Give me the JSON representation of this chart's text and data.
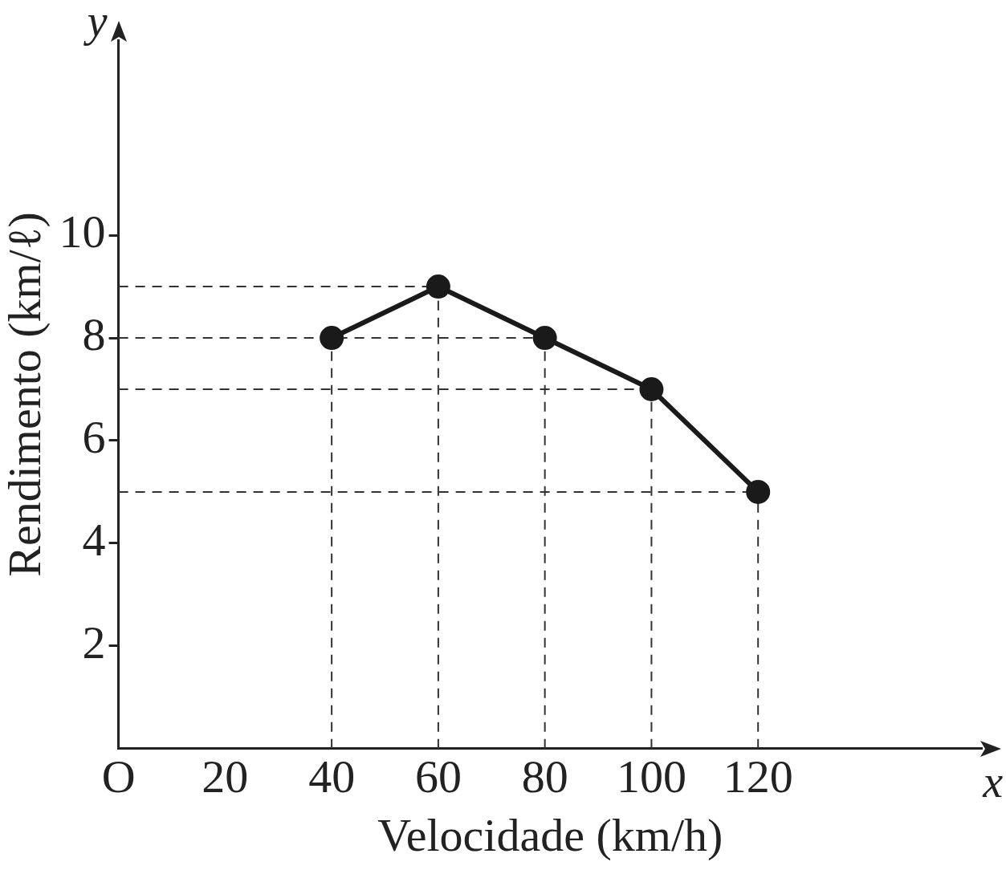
{
  "chart_data": {
    "type": "line",
    "xlabel": "Velocidade (km/h)",
    "ylabel": "Rendimento (km/ℓ)",
    "x": [
      40,
      60,
      80,
      100,
      120
    ],
    "series": [
      {
        "color": "#1a1a1a",
        "values": [
          8,
          9,
          8,
          7,
          5
        ]
      }
    ],
    "xlim": [
      0,
      162
    ],
    "ylim": [
      0,
      13.8
    ],
    "xticks": [
      {
        "value": 0,
        "label": "O"
      },
      20,
      40,
      60,
      80,
      100,
      120
    ],
    "yticks": [
      2,
      4,
      6,
      8,
      10
    ],
    "ref_lines": [
      {
        "axis": "x",
        "value": 40,
        "line_style": "dashed"
      },
      {
        "axis": "x",
        "value": 60,
        "line_style": "dashed"
      },
      {
        "axis": "x",
        "value": 80,
        "line_style": "dashed"
      },
      {
        "axis": "x",
        "value": 100,
        "line_style": "dashed"
      },
      {
        "axis": "x",
        "value": 120,
        "line_style": "dashed"
      },
      {
        "axis": "y",
        "value": 9,
        "line_style": "dashed"
      },
      {
        "axis": "y",
        "value": 8,
        "line_style": "dashed"
      },
      {
        "axis": "y",
        "value": 7,
        "line_style": "dashed"
      },
      {
        "axis": "y",
        "value": 5,
        "line_style": "dashed"
      }
    ],
    "annotations": [
      "x",
      "y"
    ],
    "marker": "circle",
    "line_style": "solid"
  }
}
